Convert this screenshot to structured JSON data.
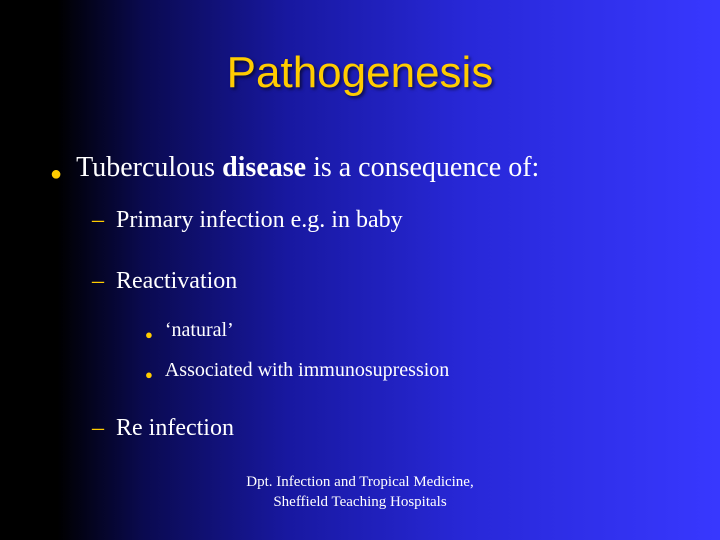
{
  "slide": {
    "background_gradient": {
      "from": "#000000",
      "to": "#3838ff",
      "direction": "to right"
    },
    "title": {
      "text": "Pathogenesis",
      "color": "#ffcc00",
      "font_family": "Arial",
      "font_size_pt": 44
    },
    "bullet_color": "#ffcc00",
    "text_color": "#ffffff",
    "body_font_family": "Times New Roman",
    "levels": {
      "l1_font_size_pt": 28,
      "l2_font_size_pt": 24,
      "l3_font_size_pt": 20
    },
    "content": {
      "main_pre": "Tuberculous ",
      "main_bold": "disease",
      "main_post": " is a consequence of:",
      "sub1": "Primary infection e.g. in baby",
      "sub2": "Reactivation",
      "sub2_a": "‘natural’",
      "sub2_b": "Associated with immunosupression",
      "sub3": "Re infection"
    },
    "footer": {
      "line1": "Dpt. Infection and Tropical Medicine,",
      "line2": "Sheffield Teaching Hospitals",
      "font_size_pt": 15
    }
  }
}
